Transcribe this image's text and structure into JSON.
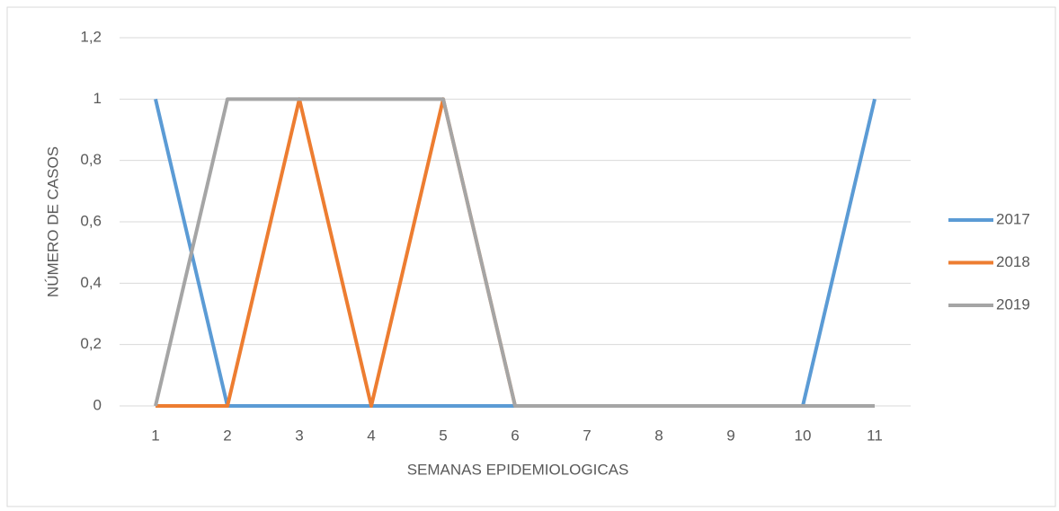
{
  "chart_data": {
    "type": "line",
    "x_label": "SEMANAS EPIDEMIOLOGICAS",
    "y_label": "NÚMERO DE CASOS",
    "categories": [
      "1",
      "2",
      "3",
      "4",
      "5",
      "6",
      "7",
      "8",
      "9",
      "10",
      "11"
    ],
    "series": [
      {
        "name": "2017",
        "color": "#5b9bd5",
        "values": [
          1,
          0,
          0,
          0,
          0,
          0,
          0,
          0,
          0,
          0,
          1
        ]
      },
      {
        "name": "2018",
        "color": "#ed7d31",
        "values": [
          0,
          0,
          1,
          0,
          1,
          0,
          0,
          0,
          0,
          0,
          0
        ]
      },
      {
        "name": "2019",
        "color": "#a5a5a5",
        "values": [
          0,
          1,
          1,
          1,
          1,
          0,
          0,
          0,
          0,
          0,
          0
        ]
      }
    ],
    "ylim": [
      0,
      1.2
    ],
    "yticks": [
      0,
      {
        "value": 0.2,
        "label": "0,2"
      },
      {
        "value": 0.4,
        "label": "0,4"
      },
      {
        "value": 0.6,
        "label": "0,6"
      },
      {
        "value": 0.8,
        "label": "0,8"
      },
      1,
      {
        "value": 1.2,
        "label": "1,2"
      }
    ],
    "grid": true,
    "legend": "right"
  }
}
